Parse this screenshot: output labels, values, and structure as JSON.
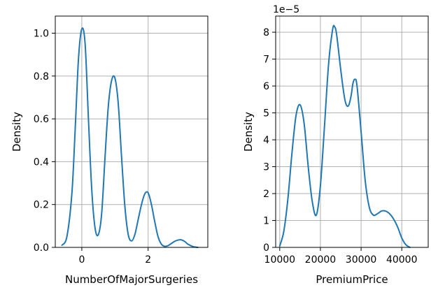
{
  "chart_data": [
    {
      "type": "line",
      "xlabel": "NumberOfMajorSurgeries",
      "ylabel": "Density",
      "xlim": [
        -0.8,
        3.8
      ],
      "ylim": [
        0,
        1.08
      ],
      "xticks": [
        0,
        2
      ],
      "xtick_labels": [
        "0",
        "2"
      ],
      "yticks": [
        0,
        0.2,
        0.4,
        0.6,
        0.8,
        1.0
      ],
      "ytick_labels": [
        "0.0",
        "0.2",
        "0.4",
        "0.6",
        "0.8",
        "1.0"
      ],
      "grid": true,
      "color": "#1f77b4",
      "series": [
        {
          "x": [
            -0.6,
            -0.45,
            -0.3,
            -0.2,
            -0.1,
            0.0,
            0.1,
            0.2,
            0.3,
            0.4,
            0.5,
            0.6,
            0.7,
            0.8,
            0.9,
            1.0,
            1.1,
            1.2,
            1.3,
            1.4,
            1.5,
            1.6,
            1.7,
            1.8,
            1.9,
            2.0,
            2.1,
            2.2,
            2.3,
            2.4,
            2.5,
            2.6,
            2.7,
            2.8,
            2.9,
            3.0,
            3.1,
            3.2,
            3.35,
            3.5
          ],
          "y": [
            0.01,
            0.05,
            0.25,
            0.55,
            0.88,
            1.02,
            0.95,
            0.6,
            0.27,
            0.09,
            0.06,
            0.16,
            0.42,
            0.66,
            0.78,
            0.79,
            0.67,
            0.42,
            0.19,
            0.06,
            0.03,
            0.06,
            0.13,
            0.2,
            0.25,
            0.255,
            0.2,
            0.12,
            0.05,
            0.015,
            0.005,
            0.008,
            0.018,
            0.028,
            0.034,
            0.035,
            0.028,
            0.015,
            0.004,
            0.0
          ]
        }
      ]
    },
    {
      "type": "line",
      "xlabel": "PremiumPrice",
      "ylabel": "Density",
      "y_offset_label": "1e−5",
      "xlim": [
        9000,
        46500
      ],
      "ylim": [
        0,
        8.6
      ],
      "xticks": [
        10000,
        20000,
        30000,
        40000
      ],
      "xtick_labels": [
        "10000",
        "20000",
        "30000",
        "40000"
      ],
      "yticks": [
        0,
        1,
        2,
        3,
        4,
        5,
        6,
        7,
        8
      ],
      "ytick_labels": [
        "0",
        "1",
        "2",
        "3",
        "4",
        "5",
        "6",
        "7",
        "8"
      ],
      "grid": true,
      "color": "#1f77b4",
      "series": [
        {
          "x": [
            10000,
            11000,
            12000,
            13000,
            14000,
            15000,
            16000,
            17000,
            18000,
            19000,
            20000,
            21000,
            22000,
            23000,
            23500,
            24000,
            25000,
            26000,
            26800,
            27500,
            28000,
            28500,
            29000,
            30000,
            31000,
            32000,
            33000,
            34000,
            35000,
            36000,
            37000,
            38000,
            39000,
            40000,
            41000,
            42000
          ],
          "y": [
            0.05,
            0.6,
            1.8,
            3.5,
            4.9,
            5.3,
            4.6,
            3.0,
            1.7,
            1.2,
            2.3,
            4.5,
            6.8,
            8.1,
            8.2,
            7.9,
            6.6,
            5.5,
            5.25,
            5.6,
            6.1,
            6.25,
            6.0,
            4.3,
            2.5,
            1.5,
            1.2,
            1.25,
            1.35,
            1.35,
            1.25,
            1.05,
            0.75,
            0.35,
            0.1,
            0.0
          ]
        }
      ]
    }
  ]
}
